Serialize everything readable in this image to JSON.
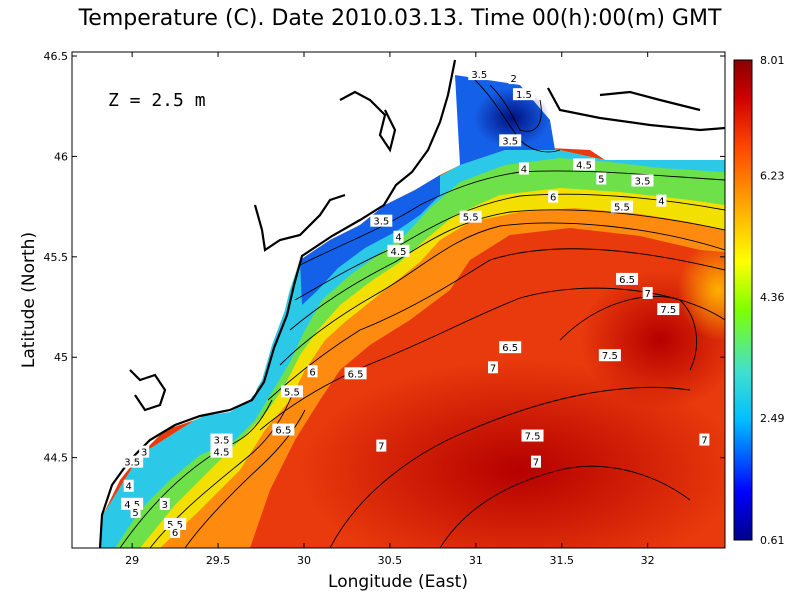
{
  "title": "Temperature (C). Date 2010.03.13. Time 00(h):00(m) GMT",
  "depth_label": "Z  =  2.5  m",
  "xlabel": "Longitude (East)",
  "ylabel": "Latitude (North)",
  "chart_data": {
    "type": "heatmap",
    "variable": "Temperature (C)",
    "x_ticks": [
      "29",
      "29.5",
      "30",
      "30.5",
      "31",
      "31.5",
      "32"
    ],
    "y_ticks": [
      "44.5",
      "45",
      "45.5",
      "46",
      "46.5"
    ],
    "xlim": [
      28.65,
      32.45
    ],
    "ylim": [
      44.05,
      46.52
    ],
    "colorbar_ticks": [
      "8.01",
      "6.23",
      "4.36",
      "2.49",
      "0.61"
    ],
    "colorbar_range": [
      0.61,
      8.01
    ],
    "colormap": [
      "#00008b",
      "#0000ff",
      "#00bfff",
      "#40e0d0",
      "#7fff00",
      "#ffff00",
      "#ffa500",
      "#ff4500",
      "#d00000",
      "#8b0000"
    ],
    "contour_labels": [
      {
        "text": "3.5",
        "lon": 31.02,
        "lat": 46.41
      },
      {
        "text": "2",
        "lon": 31.22,
        "lat": 46.39
      },
      {
        "text": "1.5",
        "lon": 31.28,
        "lat": 46.31
      },
      {
        "text": "3.5",
        "lon": 31.2,
        "lat": 46.08
      },
      {
        "text": "4",
        "lon": 31.28,
        "lat": 45.94
      },
      {
        "text": "4.5",
        "lon": 31.63,
        "lat": 45.96
      },
      {
        "text": "5",
        "lon": 31.73,
        "lat": 45.89
      },
      {
        "text": "3.5",
        "lon": 31.97,
        "lat": 45.88
      },
      {
        "text": "4",
        "lon": 32.08,
        "lat": 45.78
      },
      {
        "text": "6",
        "lon": 31.45,
        "lat": 45.8
      },
      {
        "text": "5.5",
        "lon": 31.85,
        "lat": 45.75
      },
      {
        "text": "5.5",
        "lon": 30.97,
        "lat": 45.7
      },
      {
        "text": "3.5",
        "lon": 30.45,
        "lat": 45.68
      },
      {
        "text": "4",
        "lon": 30.55,
        "lat": 45.6
      },
      {
        "text": "4.5",
        "lon": 30.55,
        "lat": 45.53
      },
      {
        "text": "6.5",
        "lon": 31.88,
        "lat": 45.39
      },
      {
        "text": "7",
        "lon": 32.0,
        "lat": 45.32
      },
      {
        "text": "7.5",
        "lon": 32.12,
        "lat": 45.24
      },
      {
        "text": "6.5",
        "lon": 31.2,
        "lat": 45.05
      },
      {
        "text": "7.5",
        "lon": 31.78,
        "lat": 45.01
      },
      {
        "text": "7",
        "lon": 31.1,
        "lat": 44.95
      },
      {
        "text": "6",
        "lon": 30.05,
        "lat": 44.93
      },
      {
        "text": "6.5",
        "lon": 30.3,
        "lat": 44.92
      },
      {
        "text": "5.5",
        "lon": 29.93,
        "lat": 44.83
      },
      {
        "text": "6.5",
        "lon": 29.88,
        "lat": 44.64
      },
      {
        "text": "7",
        "lon": 30.45,
        "lat": 44.56
      },
      {
        "text": "7.5",
        "lon": 31.33,
        "lat": 44.61
      },
      {
        "text": "7",
        "lon": 32.33,
        "lat": 44.59
      },
      {
        "text": "7",
        "lon": 31.35,
        "lat": 44.48
      },
      {
        "text": "3.5",
        "lon": 29.52,
        "lat": 44.59
      },
      {
        "text": "3",
        "lon": 29.07,
        "lat": 44.53
      },
      {
        "text": "4.5",
        "lon": 29.52,
        "lat": 44.53
      },
      {
        "text": "3.5",
        "lon": 29.0,
        "lat": 44.48
      },
      {
        "text": "4",
        "lon": 28.98,
        "lat": 44.36
      },
      {
        "text": "4.5",
        "lon": 29.0,
        "lat": 44.27
      },
      {
        "text": "5",
        "lon": 29.02,
        "lat": 44.23
      },
      {
        "text": "3",
        "lon": 29.19,
        "lat": 44.27
      },
      {
        "text": "5.5",
        "lon": 29.25,
        "lat": 44.17
      },
      {
        "text": "6",
        "lon": 29.25,
        "lat": 44.13
      }
    ]
  }
}
